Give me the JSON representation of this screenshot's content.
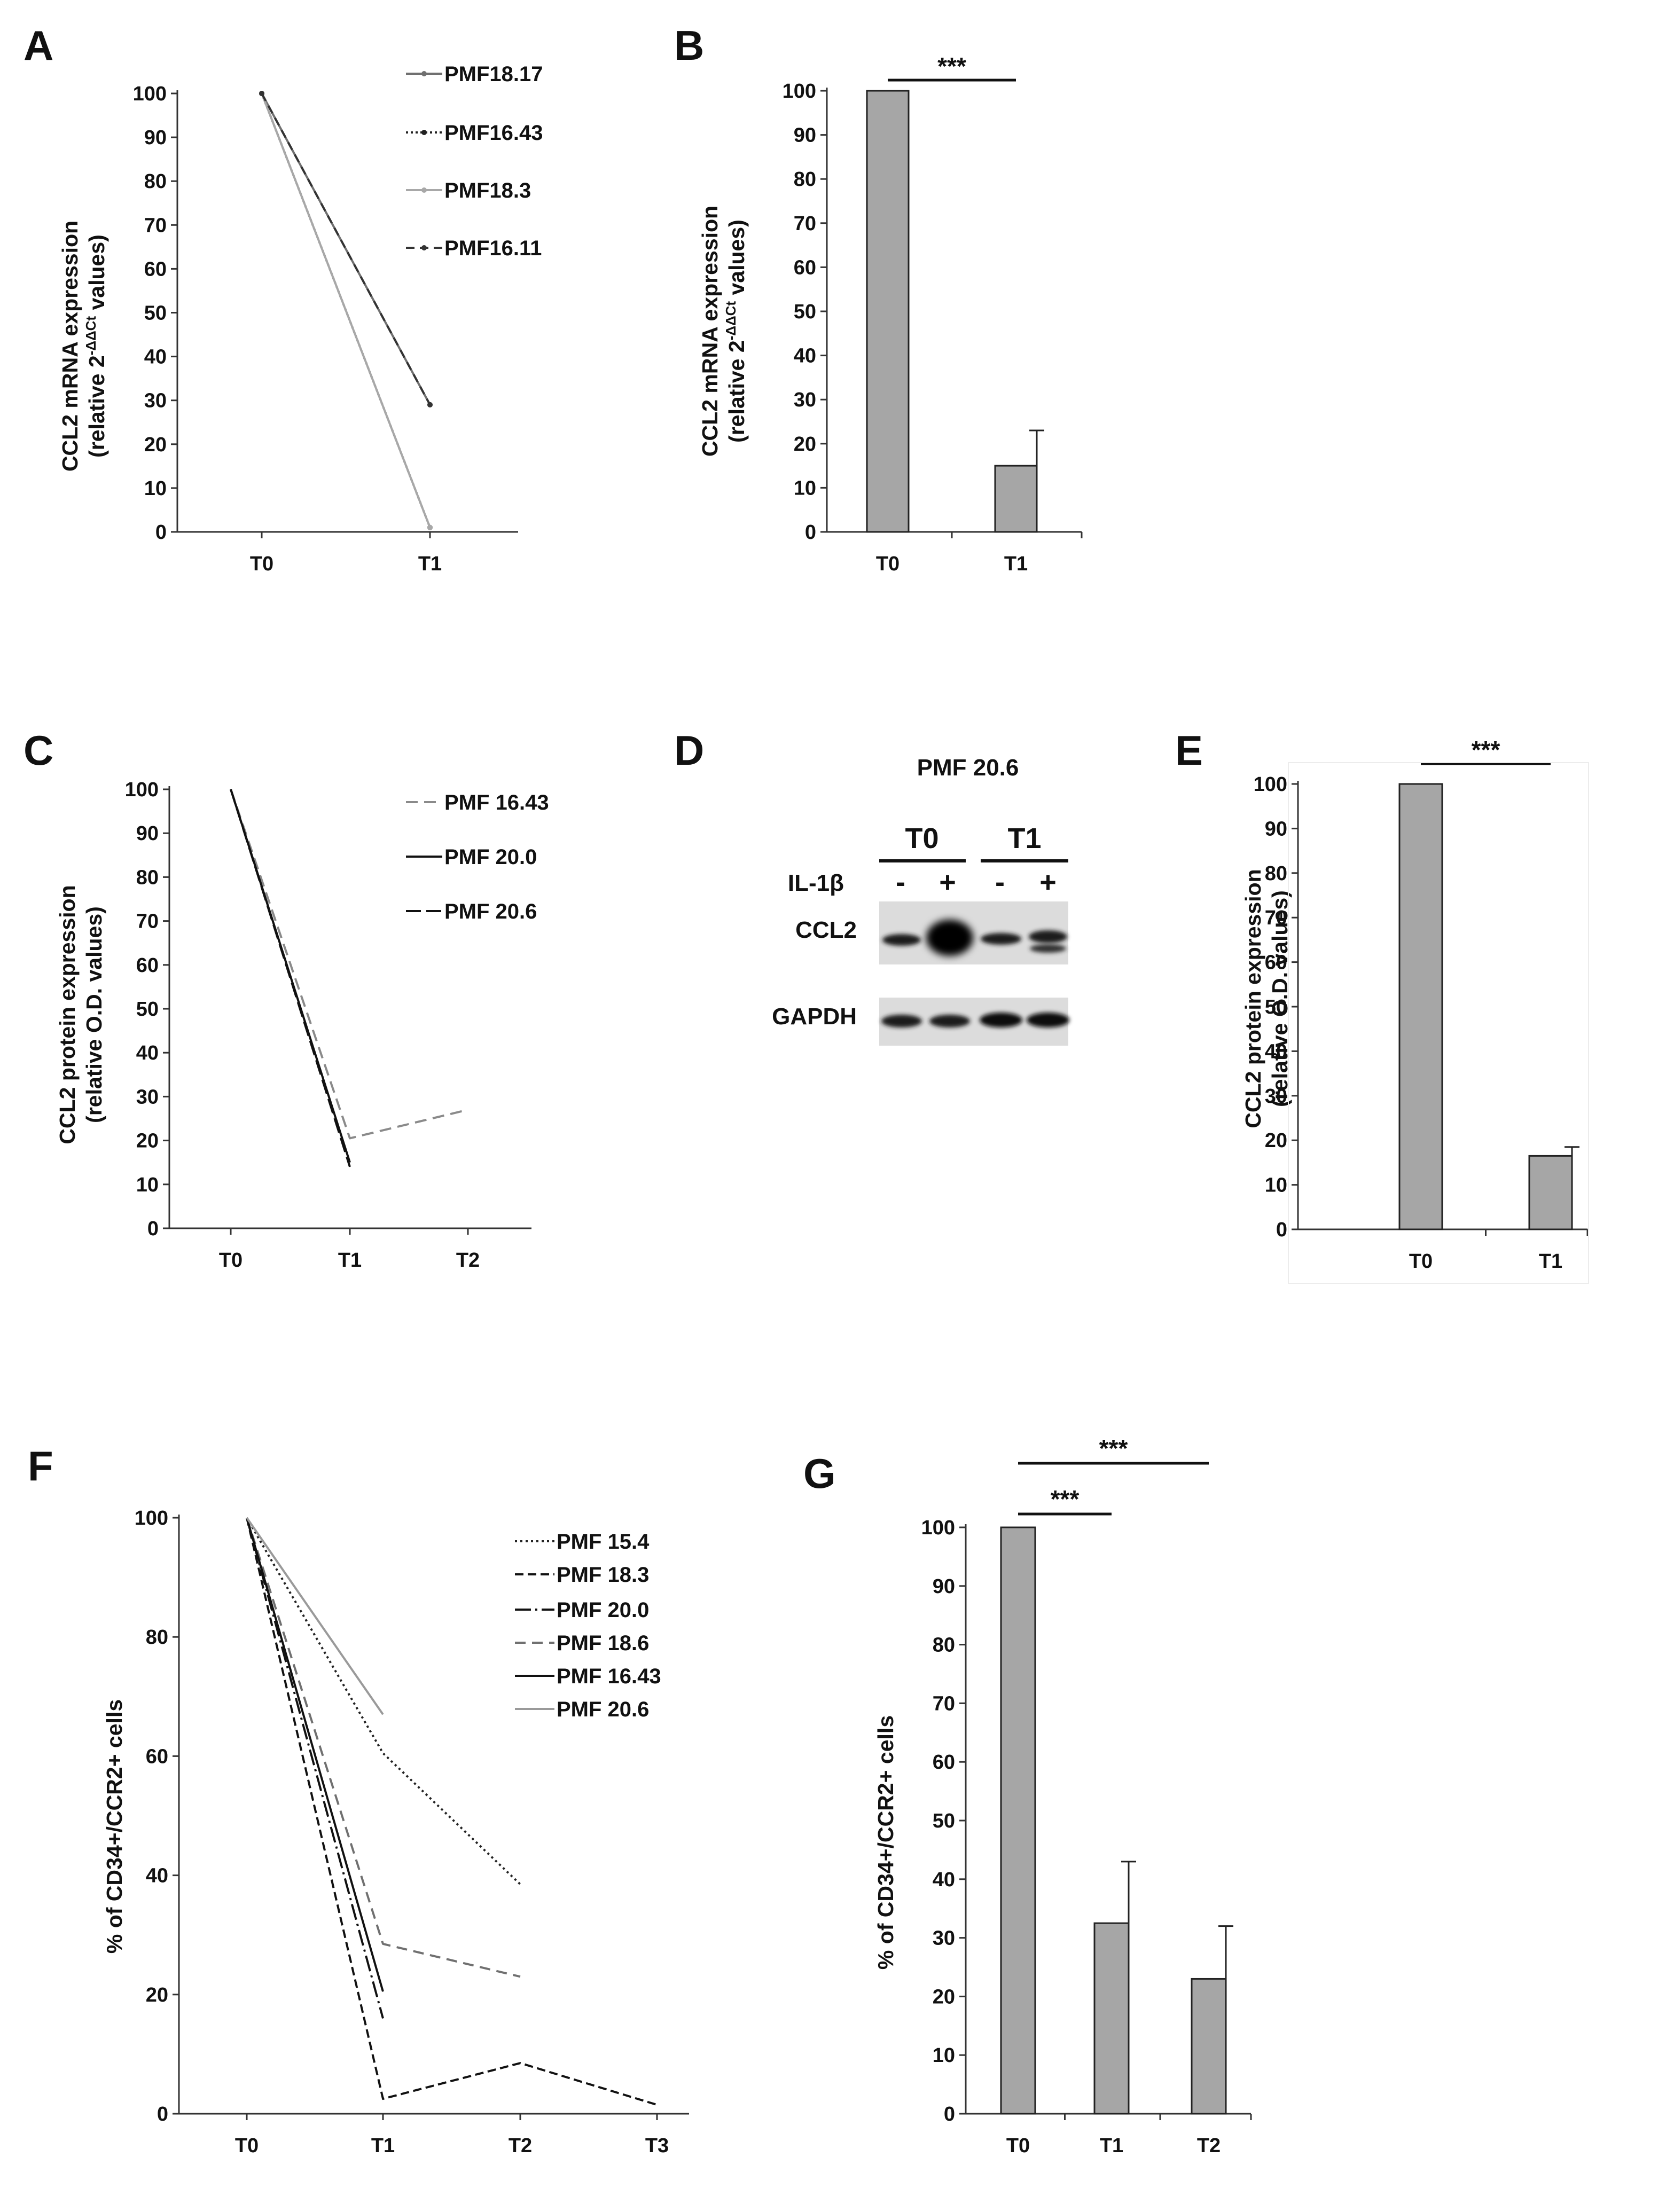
{
  "panels": [
    {
      "letter": "A",
      "chart_data": {
        "type": "line",
        "ylabel_line1": "CCL2 mRNA expression",
        "ylabel_line2_pre": "(relative 2",
        "ylabel_superscript": "-ΔΔCt",
        "ylabel_line2_post": " values)",
        "categories": [
          "T0",
          "T1"
        ],
        "ylim": [
          0,
          100
        ],
        "yticks": [
          0,
          10,
          20,
          30,
          40,
          50,
          60,
          70,
          80,
          90,
          100
        ],
        "series": [
          {
            "name": "PMF18.17",
            "values": [
              100,
              29
            ],
            "color": "#707070",
            "dash": "",
            "marker": "dot"
          },
          {
            "name": "PMF16.43",
            "values": [
              100,
              1
            ],
            "color": "#222222",
            "dash": "4,5",
            "marker": "dot"
          },
          {
            "name": "PMF18.3",
            "values": [
              100,
              1
            ],
            "color": "#a8a8a8",
            "dash": "",
            "marker": "dot"
          },
          {
            "name": "PMF16.11",
            "values": [
              100,
              29
            ],
            "color": "#333333",
            "dash": "16,10",
            "marker": "dot"
          }
        ]
      }
    },
    {
      "letter": "B",
      "chart_data": {
        "type": "bar",
        "ylabel_line1": "CCL2 mRNA expression",
        "ylabel_line2_pre": "(relative 2",
        "ylabel_superscript": "-ΔΔCt",
        "ylabel_line2_post": " values)",
        "categories": [
          "T0",
          "T1"
        ],
        "values": [
          100,
          15
        ],
        "errors": [
          0,
          8
        ],
        "ylim": [
          0,
          100
        ],
        "yticks": [
          0,
          10,
          20,
          30,
          40,
          50,
          60,
          70,
          80,
          90,
          100
        ],
        "bar_color": "#a6a6a6",
        "significance": [
          {
            "from": "T0",
            "to": "T1",
            "label": "***"
          }
        ]
      }
    },
    {
      "letter": "C",
      "chart_data": {
        "type": "line",
        "ylabel_line1": "CCL2 protein expression",
        "ylabel_line2": "(relative O.D. values)",
        "categories": [
          "T0",
          "T1",
          "T2"
        ],
        "ylim": [
          0,
          100
        ],
        "yticks": [
          0,
          10,
          20,
          30,
          40,
          50,
          60,
          70,
          80,
          90,
          100
        ],
        "series": [
          {
            "name": "PMF 16.43",
            "values": [
              100,
              20.5,
              27
            ],
            "color": "#8a8a8a",
            "dash": "22,12",
            "marker": ""
          },
          {
            "name": "PMF 20.0",
            "values": [
              100,
              15,
              null
            ],
            "color": "#111111",
            "dash": "",
            "marker": ""
          },
          {
            "name": "PMF 20.6",
            "values": [
              100,
              14,
              null
            ],
            "color": "#111111",
            "dash": "28,10",
            "marker": ""
          }
        ]
      }
    },
    {
      "letter": "D",
      "blot": {
        "title": "PMF 20.6",
        "groups": [
          "T0",
          "T1"
        ],
        "treatment": "IL-1β",
        "signs": [
          "-",
          "+",
          "-",
          "+"
        ],
        "rows": [
          "CCL2",
          "GAPDH"
        ]
      }
    },
    {
      "letter": "E",
      "chart_data": {
        "type": "bar",
        "ylabel_line1": "CCL2 protein expression",
        "ylabel_line2": "(relative O.D. values)",
        "categories": [
          "T0",
          "T1"
        ],
        "values": [
          100,
          16.5
        ],
        "errors": [
          0,
          2
        ],
        "ylim": [
          0,
          100
        ],
        "yticks": [
          0,
          10,
          20,
          30,
          40,
          50,
          60,
          70,
          80,
          90,
          100
        ],
        "bar_color": "#a6a6a6",
        "significance": [
          {
            "from": "T0",
            "to": "T1",
            "label": "***"
          }
        ]
      }
    },
    {
      "letter": "F",
      "chart_data": {
        "type": "line",
        "ylabel_line1": "% of CD34+/CCR2+ cells",
        "categories": [
          "T0",
          "T1",
          "T2",
          "T3"
        ],
        "ylim": [
          0,
          100
        ],
        "yticks": [
          0,
          20,
          40,
          60,
          80,
          100
        ],
        "series": [
          {
            "name": "PMF 15.4",
            "values": [
              100,
              60.5,
              38.5,
              null
            ],
            "color": "#222222",
            "dash": "4,6",
            "marker": ""
          },
          {
            "name": "PMF 18.3",
            "values": [
              100,
              2.5,
              8.5,
              1.5
            ],
            "color": "#111111",
            "dash": "16,8",
            "marker": ""
          },
          {
            "name": "PMF 20.0",
            "values": [
              100,
              16,
              null,
              null
            ],
            "color": "#111111",
            "dash": "30,8,4,8",
            "marker": ""
          },
          {
            "name": "PMF 18.6",
            "values": [
              100,
              28.5,
              23,
              null
            ],
            "color": "#707070",
            "dash": "20,12",
            "marker": ""
          },
          {
            "name": "PMF 16.43",
            "values": [
              100,
              20.5,
              null,
              null
            ],
            "color": "#111111",
            "dash": "",
            "marker": ""
          },
          {
            "name": "PMF 20.6",
            "values": [
              100,
              67,
              null,
              null
            ],
            "color": "#9a9a9a",
            "dash": "",
            "marker": ""
          }
        ]
      }
    },
    {
      "letter": "G",
      "chart_data": {
        "type": "bar",
        "ylabel_line1": "% of CD34+/CCR2+ cells",
        "categories": [
          "T0",
          "T1",
          "T2"
        ],
        "values": [
          100,
          32.5,
          23
        ],
        "errors": [
          0,
          10.5,
          9
        ],
        "ylim": [
          0,
          100
        ],
        "yticks": [
          0,
          10,
          20,
          30,
          40,
          50,
          60,
          70,
          80,
          90,
          100
        ],
        "bar_color": "#a6a6a6",
        "significance": [
          {
            "from": "T0",
            "to": "T1",
            "label": "***"
          },
          {
            "from": "T0",
            "to": "T2",
            "label": "***"
          }
        ]
      }
    }
  ]
}
